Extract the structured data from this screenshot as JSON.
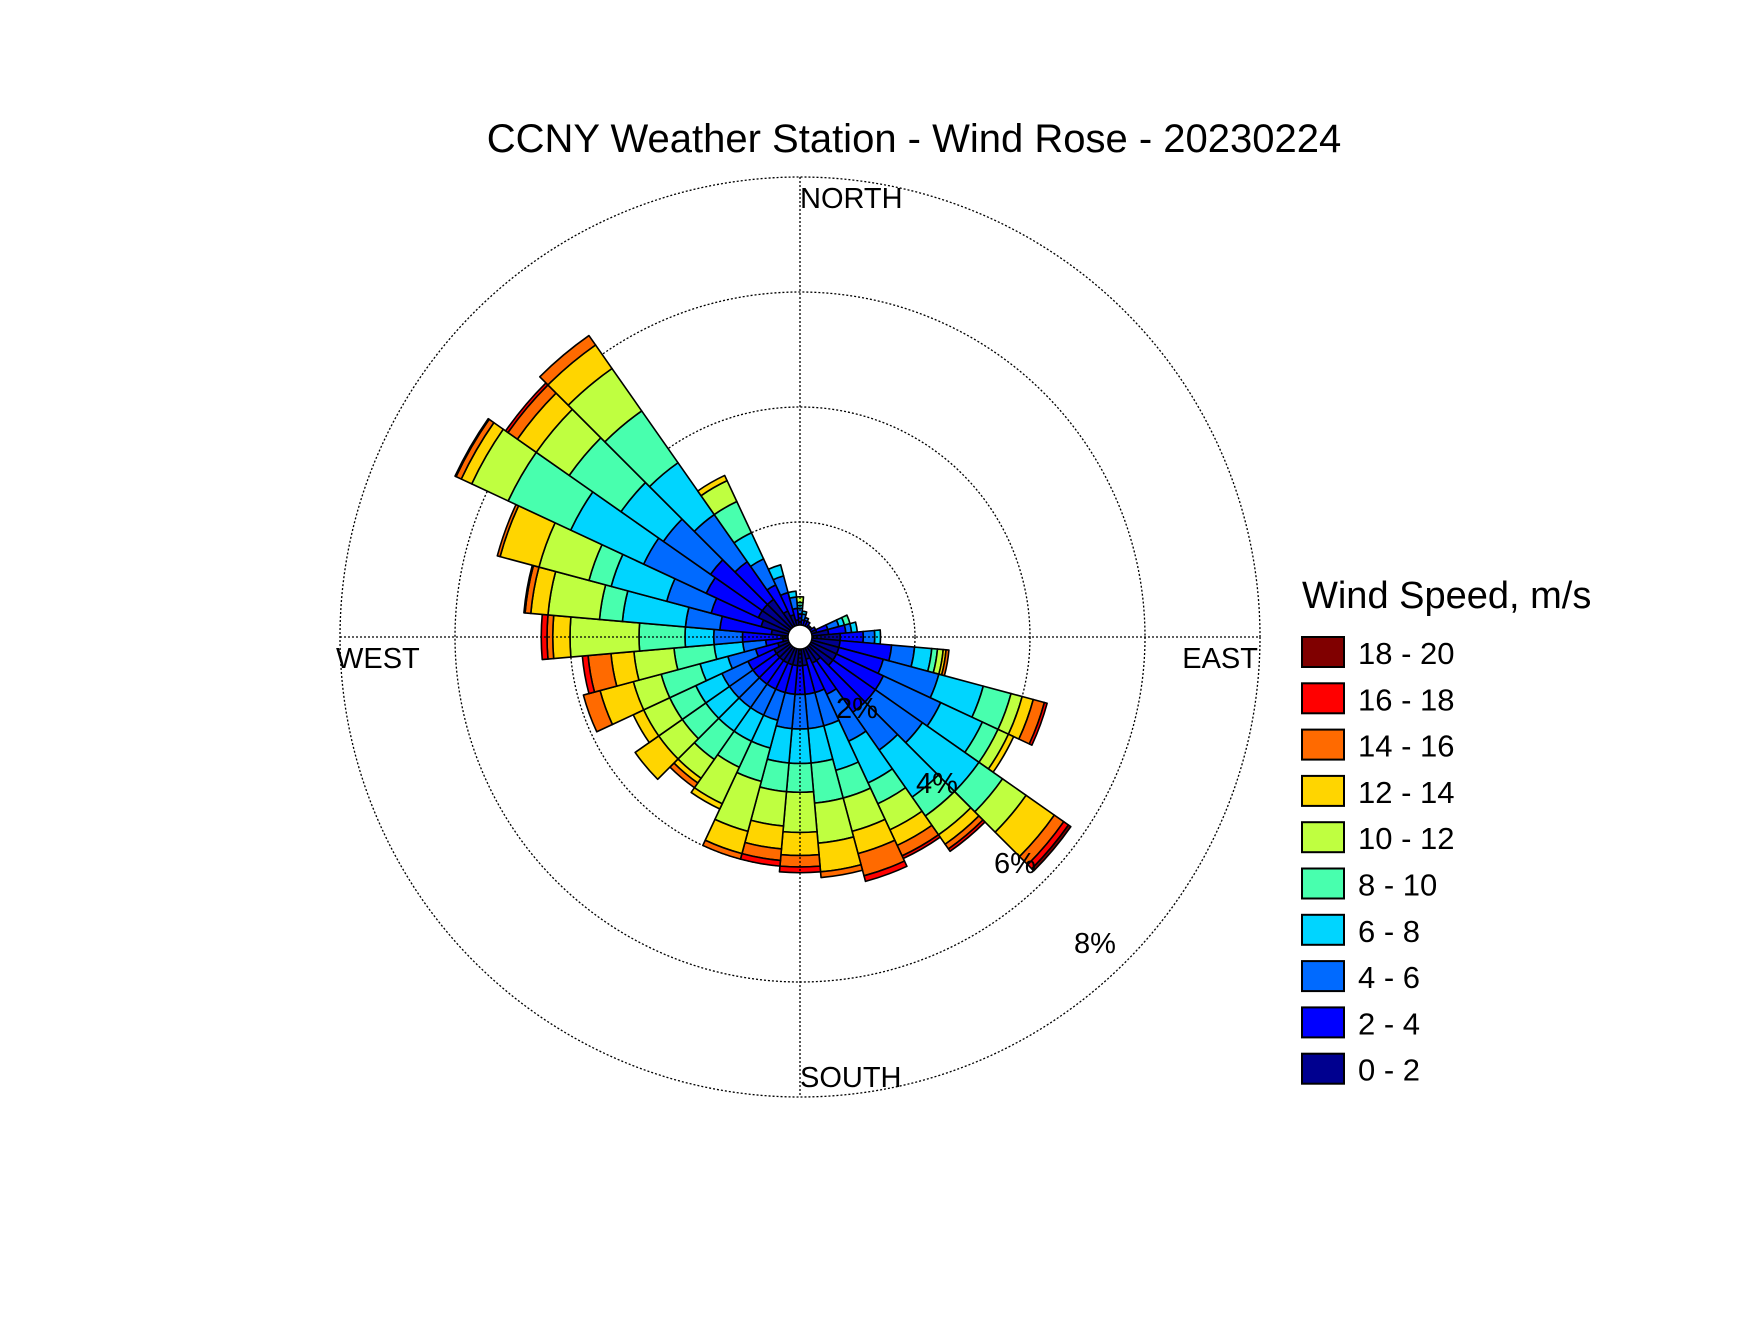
{
  "chart_data": {
    "type": "wind-rose",
    "title": "CCNY Weather Station - Wind Rose - 20230224",
    "compass_labels": {
      "north": "NORTH",
      "south": "SOUTH",
      "east": "EAST",
      "west": "WEST"
    },
    "ring_values": [
      2,
      4,
      6,
      8
    ],
    "ring_labels": [
      "2%",
      "4%",
      "6%",
      "8%"
    ],
    "radial_max": 8,
    "grid": true,
    "legend": {
      "title": "Wind Speed, m/s",
      "placement": "right",
      "bins": [
        {
          "label": "18 - 20",
          "color": "#800000"
        },
        {
          "label": "16 - 18",
          "color": "#ff0000"
        },
        {
          "label": "14 - 16",
          "color": "#ff6a00"
        },
        {
          "label": "12 - 14",
          "color": "#ffd500"
        },
        {
          "label": "10 - 12",
          "color": "#bfff40"
        },
        {
          "label": "8 - 10",
          "color": "#48ffae"
        },
        {
          "label": "6 - 8",
          "color": "#00d5ff"
        },
        {
          "label": "4 - 6",
          "color": "#006aff"
        },
        {
          "label": "2 - 4",
          "color": "#0000ff"
        },
        {
          "label": "0 - 2",
          "color": "#00008f"
        }
      ]
    },
    "bin_order": [
      "0 - 2",
      "2 - 4",
      "4 - 6",
      "6 - 8",
      "8 - 10",
      "10 - 12",
      "12 - 14",
      "14 - 16",
      "16 - 18",
      "18 - 20"
    ],
    "sectors": [
      {
        "direction_deg": 0,
        "cumulative_percent": [
          0.2,
          0.4,
          0.5,
          0.55,
          0.6,
          0.7
        ]
      },
      {
        "direction_deg": 10,
        "cumulative_percent": [
          0.2,
          0.3,
          0.4,
          0.45
        ]
      },
      {
        "direction_deg": 20,
        "cumulative_percent": [
          0.2,
          0.3,
          0.35
        ]
      },
      {
        "direction_deg": 30,
        "cumulative_percent": [
          0.2,
          0.3
        ]
      },
      {
        "direction_deg": 40,
        "cumulative_percent": [
          0.2,
          0.25
        ]
      },
      {
        "direction_deg": 50,
        "cumulative_percent": [
          0.2,
          0.25
        ]
      },
      {
        "direction_deg": 60,
        "cumulative_percent": [
          0.2,
          0.3
        ]
      },
      {
        "direction_deg": 70,
        "cumulative_percent": [
          0.3,
          0.5,
          0.7,
          0.8,
          0.9
        ]
      },
      {
        "direction_deg": 80,
        "cumulative_percent": [
          0.5,
          0.8,
          0.9,
          1.0
        ]
      },
      {
        "direction_deg": 90,
        "cumulative_percent": [
          0.7,
          1.1,
          1.3,
          1.4
        ]
      },
      {
        "direction_deg": 100,
        "cumulative_percent": [
          0.7,
          1.6,
          2.0,
          2.3,
          2.4,
          2.5,
          2.55,
          2.6
        ]
      },
      {
        "direction_deg": 110,
        "cumulative_percent": [
          0.7,
          1.5,
          2.5,
          3.3,
          3.8,
          4.0,
          4.2,
          4.4,
          4.45
        ]
      },
      {
        "direction_deg": 120,
        "cumulative_percent": [
          0.7,
          1.6,
          2.7,
          3.5,
          3.8,
          4.0,
          4.1
        ]
      },
      {
        "direction_deg": 130,
        "cumulative_percent": [
          0.7,
          1.6,
          2.6,
          3.8,
          4.3,
          4.8,
          5.4,
          5.6,
          5.7,
          5.75
        ]
      },
      {
        "direction_deg": 140,
        "cumulative_percent": [
          0.5,
          1.6,
          2.4,
          3.4,
          3.8,
          4.2,
          4.4,
          4.5,
          4.55
        ]
      },
      {
        "direction_deg": 150,
        "cumulative_percent": [
          0.5,
          1.1,
          2.0,
          2.8,
          3.2,
          3.7,
          4.0,
          4.2,
          4.25
        ]
      },
      {
        "direction_deg": 160,
        "cumulative_percent": [
          0.4,
          1.0,
          1.6,
          2.4,
          2.9,
          3.5,
          3.9,
          4.3,
          4.4
        ]
      },
      {
        "direction_deg": 170,
        "cumulative_percent": [
          0.5,
          1.0,
          1.6,
          2.2,
          2.9,
          3.6,
          4.1,
          4.2
        ]
      },
      {
        "direction_deg": 180,
        "cumulative_percent": [
          0.5,
          1.0,
          1.6,
          2.2,
          2.7,
          3.4,
          3.8,
          4.0,
          4.1
        ]
      },
      {
        "direction_deg": 190,
        "cumulative_percent": [
          0.5,
          1.0,
          1.6,
          2.2,
          2.7,
          3.3,
          3.7,
          3.9,
          4.0
        ]
      },
      {
        "direction_deg": 200,
        "cumulative_percent": [
          0.5,
          1.0,
          1.5,
          2.0,
          2.6,
          3.5,
          3.9,
          4.0
        ]
      },
      {
        "direction_deg": 210,
        "cumulative_percent": [
          0.5,
          1.0,
          1.5,
          2.0,
          2.5,
          3.2,
          3.3
        ]
      },
      {
        "direction_deg": 220,
        "cumulative_percent": [
          0.5,
          1.0,
          1.5,
          2.0,
          2.6,
          3.0,
          3.1,
          3.2
        ]
      },
      {
        "direction_deg": 230,
        "cumulative_percent": [
          0.5,
          1.0,
          1.5,
          2.0,
          2.5,
          3.0,
          3.5
        ]
      },
      {
        "direction_deg": 240,
        "cumulative_percent": [
          0.5,
          1.0,
          1.5,
          2.0,
          2.5,
          3.0,
          3.2
        ]
      },
      {
        "direction_deg": 250,
        "cumulative_percent": [
          0.4,
          0.8,
          1.3,
          1.8,
          2.5,
          3.0,
          3.6,
          3.9
        ]
      },
      {
        "direction_deg": 260,
        "cumulative_percent": [
          0.3,
          0.6,
          1.0,
          1.5,
          2.2,
          2.9,
          3.3,
          3.7,
          3.8
        ]
      },
      {
        "direction_deg": 270,
        "cumulative_percent": [
          0.3,
          1.0,
          1.5,
          2.0,
          2.8,
          4.0,
          4.3,
          4.4,
          4.5
        ]
      },
      {
        "direction_deg": 280,
        "cumulative_percent": [
          0.5,
          1.4,
          2.0,
          3.1,
          3.5,
          4.4,
          4.7,
          4.8,
          4.82
        ]
      },
      {
        "direction_deg": 290,
        "cumulative_percent": [
          0.7,
          1.6,
          2.4,
          3.4,
          3.8,
          4.7,
          5.4,
          5.45
        ]
      },
      {
        "direction_deg": 300,
        "cumulative_percent": [
          0.8,
          1.8,
          3.0,
          4.4,
          5.6,
          6.3,
          6.5,
          6.6,
          6.62
        ]
      },
      {
        "direction_deg": 310,
        "cumulative_percent": [
          0.8,
          1.9,
          2.9,
          3.8,
          4.9,
          5.6,
          6.0,
          6.2,
          6.25
        ]
      },
      {
        "direction_deg": 320,
        "cumulative_percent": [
          0.8,
          1.6,
          2.6,
          3.7,
          4.8,
          5.7,
          6.2,
          6.4
        ]
      },
      {
        "direction_deg": 330,
        "cumulative_percent": [
          0.5,
          1.0,
          1.5,
          2.0,
          2.6,
          3.0,
          3.1
        ]
      },
      {
        "direction_deg": 340,
        "cumulative_percent": [
          0.4,
          0.8,
          1.1,
          1.3
        ]
      },
      {
        "direction_deg": 350,
        "cumulative_percent": [
          0.3,
          0.5,
          0.7,
          0.8
        ]
      }
    ]
  }
}
